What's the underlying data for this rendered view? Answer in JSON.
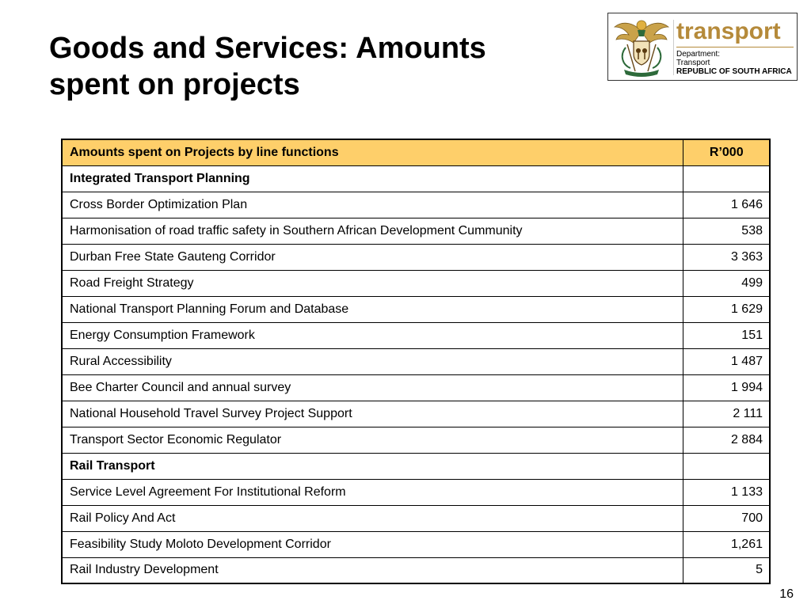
{
  "slide": {
    "title_line1": "Goods and Services: Amounts",
    "title_line2": "spent on projects",
    "page_number": "16"
  },
  "logo": {
    "wordmark": "transport",
    "line1": "Department:",
    "line2": "Transport",
    "line3": "REPUBLIC OF SOUTH AFRICA",
    "icon": "coat-of-arms-icon",
    "accent_color": "#b58a3a"
  },
  "table": {
    "header_color": "#fecf6a",
    "headers": [
      "Amounts spent on Projects by line functions",
      "R’000"
    ],
    "rows": [
      {
        "label": "Integrated Transport Planning",
        "value": "",
        "section": true
      },
      {
        "label": "Cross Border Optimization Plan",
        "value": "1 646",
        "section": false
      },
      {
        "label": "Harmonisation of road traffic safety in Southern African Development Cummunity",
        "value": "538",
        "section": false
      },
      {
        "label": "Durban Free State Gauteng Corridor",
        "value": "3 363",
        "section": false
      },
      {
        "label": "Road Freight Strategy",
        "value": "499",
        "section": false
      },
      {
        "label": "National Transport Planning Forum and Database",
        "value": "1 629",
        "section": false
      },
      {
        "label": "Energy Consumption Framework",
        "value": "151",
        "section": false
      },
      {
        "label": "Rural Accessibility",
        "value": "1 487",
        "section": false
      },
      {
        "label": "Bee Charter Council and annual survey",
        "value": "1 994",
        "section": false
      },
      {
        "label": "National Household Travel Survey Project Support",
        "value": "2 111",
        "section": false
      },
      {
        "label": "Transport Sector Economic Regulator",
        "value": "2 884",
        "section": false
      },
      {
        "label": "Rail Transport",
        "value": "",
        "section": true
      },
      {
        "label": "Service Level Agreement For Institutional Reform",
        "value": "1 133",
        "section": false
      },
      {
        "label": "Rail Policy And Act",
        "value": "700",
        "section": false
      },
      {
        "label": "Feasibility Study Moloto Development Corridor",
        "value": "1,261",
        "section": false
      },
      {
        "label": "Rail Industry Development",
        "value": "5",
        "section": false
      }
    ]
  }
}
